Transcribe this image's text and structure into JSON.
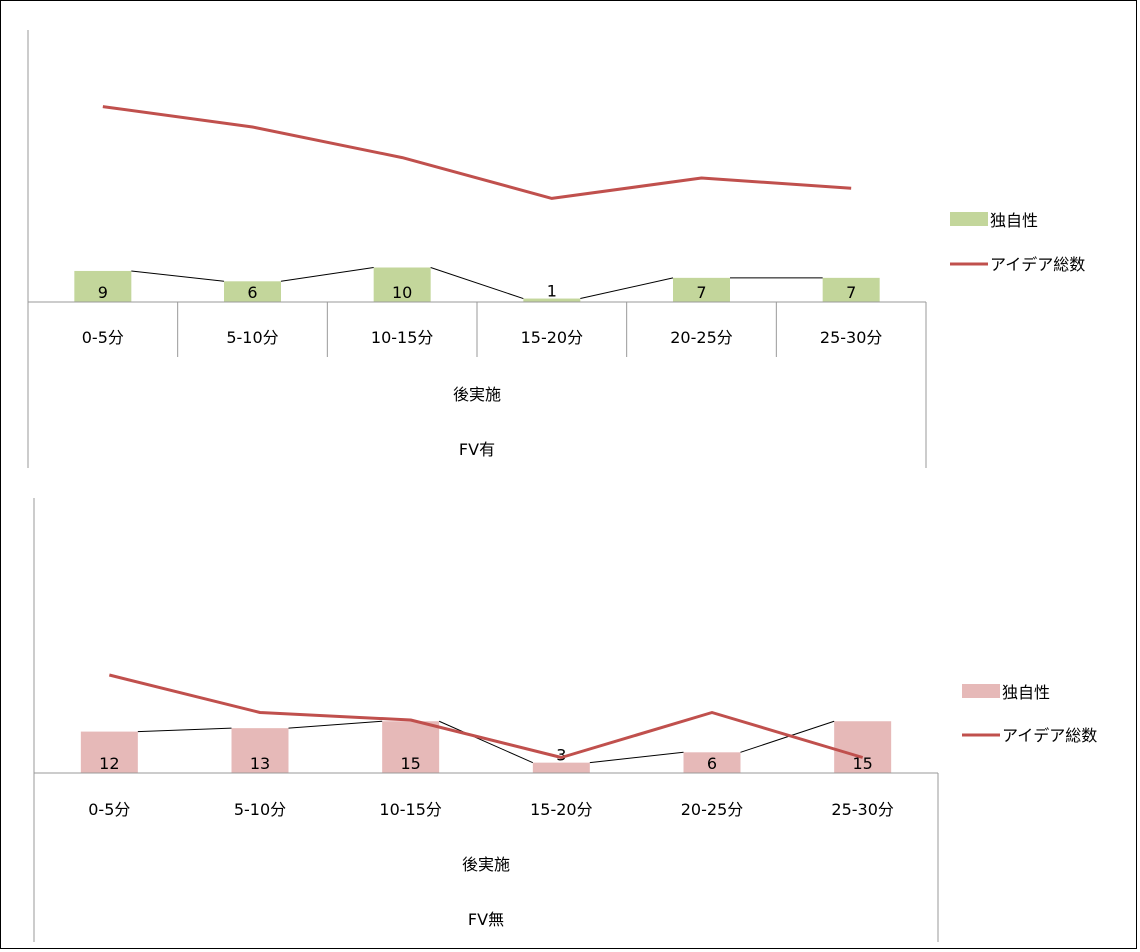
{
  "chart_data": [
    {
      "type": "bar",
      "categories": [
        "0-5分",
        "5-10分",
        "10-15分",
        "15-20分",
        "20-25分",
        "25-30分"
      ],
      "group_labels": [
        "後実施",
        "FV有"
      ],
      "series": [
        {
          "name": "独自性",
          "type": "bar",
          "color": "#c3d69b",
          "values": [
            9,
            6,
            10,
            1,
            7,
            7
          ]
        },
        {
          "name": "アイデア総数",
          "type": "line",
          "color": "#c0504d",
          "values": [
            56,
            50,
            41,
            29,
            35,
            32
          ]
        }
      ],
      "legend_position": "right"
    },
    {
      "type": "bar",
      "categories": [
        "0-5分",
        "5-10分",
        "10-15分",
        "15-20分",
        "20-25分",
        "25-30分"
      ],
      "group_labels": [
        "後実施",
        "FV無"
      ],
      "series": [
        {
          "name": "独自性",
          "type": "bar",
          "color": "#e6b9b8",
          "values": [
            12,
            13,
            15,
            3,
            6,
            15
          ]
        },
        {
          "name": "アイデア総数",
          "type": "line",
          "color": "#c0504d",
          "values": [
            80,
            70,
            68,
            58,
            70,
            58
          ]
        }
      ],
      "legend_position": "right"
    }
  ]
}
